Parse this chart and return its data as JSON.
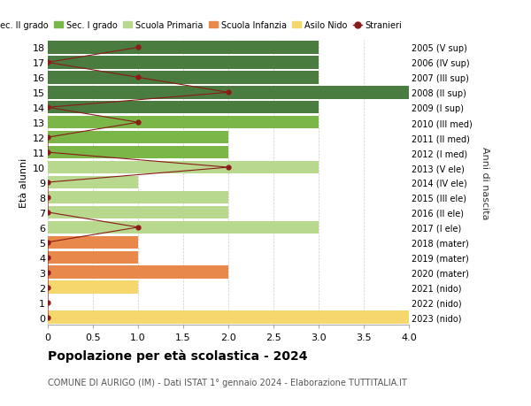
{
  "ages": [
    18,
    17,
    16,
    15,
    14,
    13,
    12,
    11,
    10,
    9,
    8,
    7,
    6,
    5,
    4,
    3,
    2,
    1,
    0
  ],
  "right_labels": [
    "2005 (V sup)",
    "2006 (IV sup)",
    "2007 (III sup)",
    "2008 (II sup)",
    "2009 (I sup)",
    "2010 (III med)",
    "2011 (II med)",
    "2012 (I med)",
    "2013 (V ele)",
    "2014 (IV ele)",
    "2015 (III ele)",
    "2016 (II ele)",
    "2017 (I ele)",
    "2018 (mater)",
    "2019 (mater)",
    "2020 (mater)",
    "2021 (nido)",
    "2022 (nido)",
    "2023 (nido)"
  ],
  "bar_values": [
    3,
    3,
    3,
    4,
    3,
    3,
    2,
    2,
    3,
    1,
    2,
    2,
    3,
    1,
    1,
    2,
    1,
    0,
    4
  ],
  "bar_colors": [
    "#4a7c3f",
    "#4a7c3f",
    "#4a7c3f",
    "#4a7c3f",
    "#4a7c3f",
    "#7ab648",
    "#7ab648",
    "#7ab648",
    "#b8d98d",
    "#b8d98d",
    "#b8d98d",
    "#b8d98d",
    "#b8d98d",
    "#e8884a",
    "#e8884a",
    "#e8884a",
    "#f5d76e",
    "#f5d76e",
    "#f5d76e"
  ],
  "stranieri_values": [
    1,
    0,
    1,
    2,
    0,
    1,
    0,
    0,
    2,
    0,
    0,
    0,
    1,
    0,
    0,
    0,
    0,
    0,
    0
  ],
  "stranieri_color": "#8b1a1a",
  "legend_items": [
    {
      "label": "Sec. II grado",
      "color": "#4a7c3f"
    },
    {
      "label": "Sec. I grado",
      "color": "#7ab648"
    },
    {
      "label": "Scuola Primaria",
      "color": "#b8d98d"
    },
    {
      "label": "Scuola Infanzia",
      "color": "#e8884a"
    },
    {
      "label": "Asilo Nido",
      "color": "#f5d76e"
    },
    {
      "label": "Stranieri",
      "color": "#8b1a1a"
    }
  ],
  "ylabel_left": "Età alunni",
  "ylabel_right": "Anni di nascita",
  "title": "Popolazione per età scolastica - 2024",
  "subtitle": "COMUNE DI AURIGO (IM) - Dati ISTAT 1° gennaio 2024 - Elaborazione TUTTITALIA.IT",
  "xlim": [
    0,
    4.0
  ],
  "xticks": [
    0,
    0.5,
    1.0,
    1.5,
    2.0,
    2.5,
    3.0,
    3.5,
    4.0
  ],
  "xtick_labels": [
    "0",
    "0.5",
    "1.0",
    "1.5",
    "2.0",
    "2.5",
    "3.0",
    "3.5",
    "4.0"
  ],
  "background_color": "#ffffff",
  "grid_color": "#cccccc",
  "bar_height": 0.85
}
